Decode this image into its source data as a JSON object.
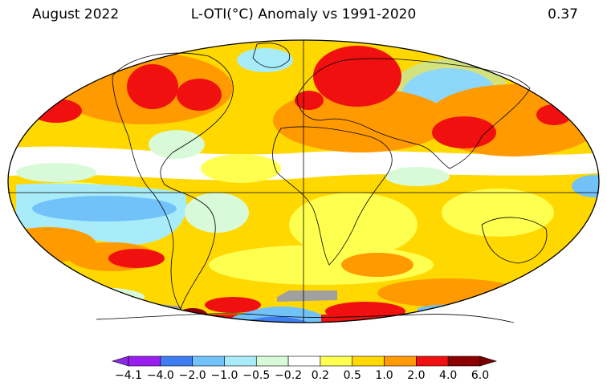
{
  "header": {
    "left": "August 2022",
    "center": "L-OTI(°C) Anomaly vs 1991-2020",
    "right": "0.37"
  },
  "colorbar": {
    "ticks": [
      "−4.1",
      "−4.0",
      "−2.0",
      "−1.0",
      "−0.5",
      "−0.2",
      "0.2",
      "0.5",
      "1.0",
      "2.0",
      "4.0",
      "6.0"
    ],
    "colors": [
      "#9a1ef0",
      "#3e7ef2",
      "#72c2fa",
      "#a8ecfa",
      "#d8fad8",
      "#ffffff",
      "#ffff50",
      "#ffd800",
      "#ff9a00",
      "#f01010",
      "#8c0000"
    ],
    "under_color": "#8a2be2",
    "over_color": "#7a0000"
  },
  "map": {
    "projection": "robinson",
    "missing_color": "#a0a0a0",
    "land_outline_color": "#000000"
  }
}
